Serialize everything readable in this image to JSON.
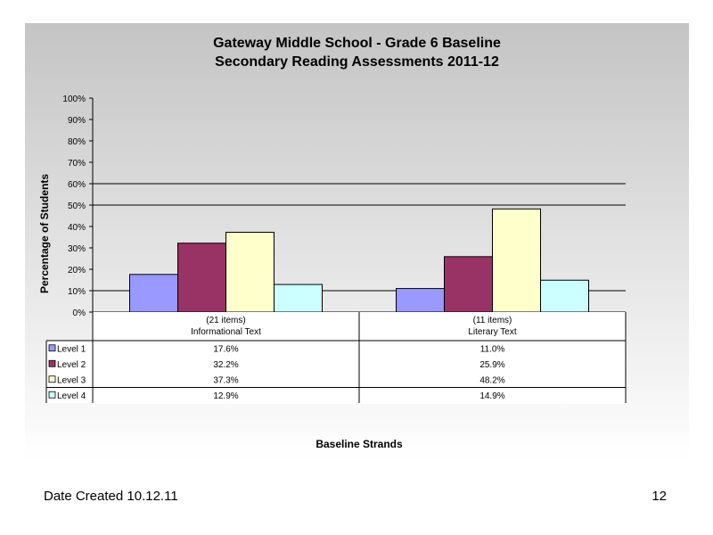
{
  "chart_data": {
    "type": "bar",
    "title": "Gateway Middle School  - Grade 6 Baseline",
    "subtitle": "Secondary Reading Assessments 2011-12",
    "ylabel": "Percentage of Students",
    "xlabel": "Baseline Strands",
    "ylim": [
      0,
      100
    ],
    "yticks": [
      "0%",
      "10%",
      "20%",
      "30%",
      "40%",
      "50%",
      "60%",
      "70%",
      "80%",
      "90%",
      "100%"
    ],
    "grid": "horizontal at 10%, 50%, 60%",
    "categories": [
      {
        "count": "(21 items)",
        "name": "Informational Text"
      },
      {
        "count": "(11 items)",
        "name": "Literary Text"
      }
    ],
    "series": [
      {
        "name": "Level 1",
        "color": "#9999ff",
        "values": [
          17.6,
          11.0
        ],
        "labels": [
          "17.6%",
          "11.0%"
        ]
      },
      {
        "name": "Level 2",
        "color": "#993366",
        "values": [
          32.2,
          25.9
        ],
        "labels": [
          "32.2%",
          "25.9%"
        ]
      },
      {
        "name": "Level 3",
        "color": "#ffffcc",
        "values": [
          37.3,
          48.2
        ],
        "labels": [
          "37.3%",
          "48.2%"
        ]
      },
      {
        "name": "Level 4",
        "color": "#ccffff",
        "values": [
          12.9,
          14.9
        ],
        "labels": [
          "12.9%",
          "14.9%"
        ]
      }
    ]
  },
  "footer": {
    "date": "Date Created  10.12.11",
    "page": "12"
  }
}
